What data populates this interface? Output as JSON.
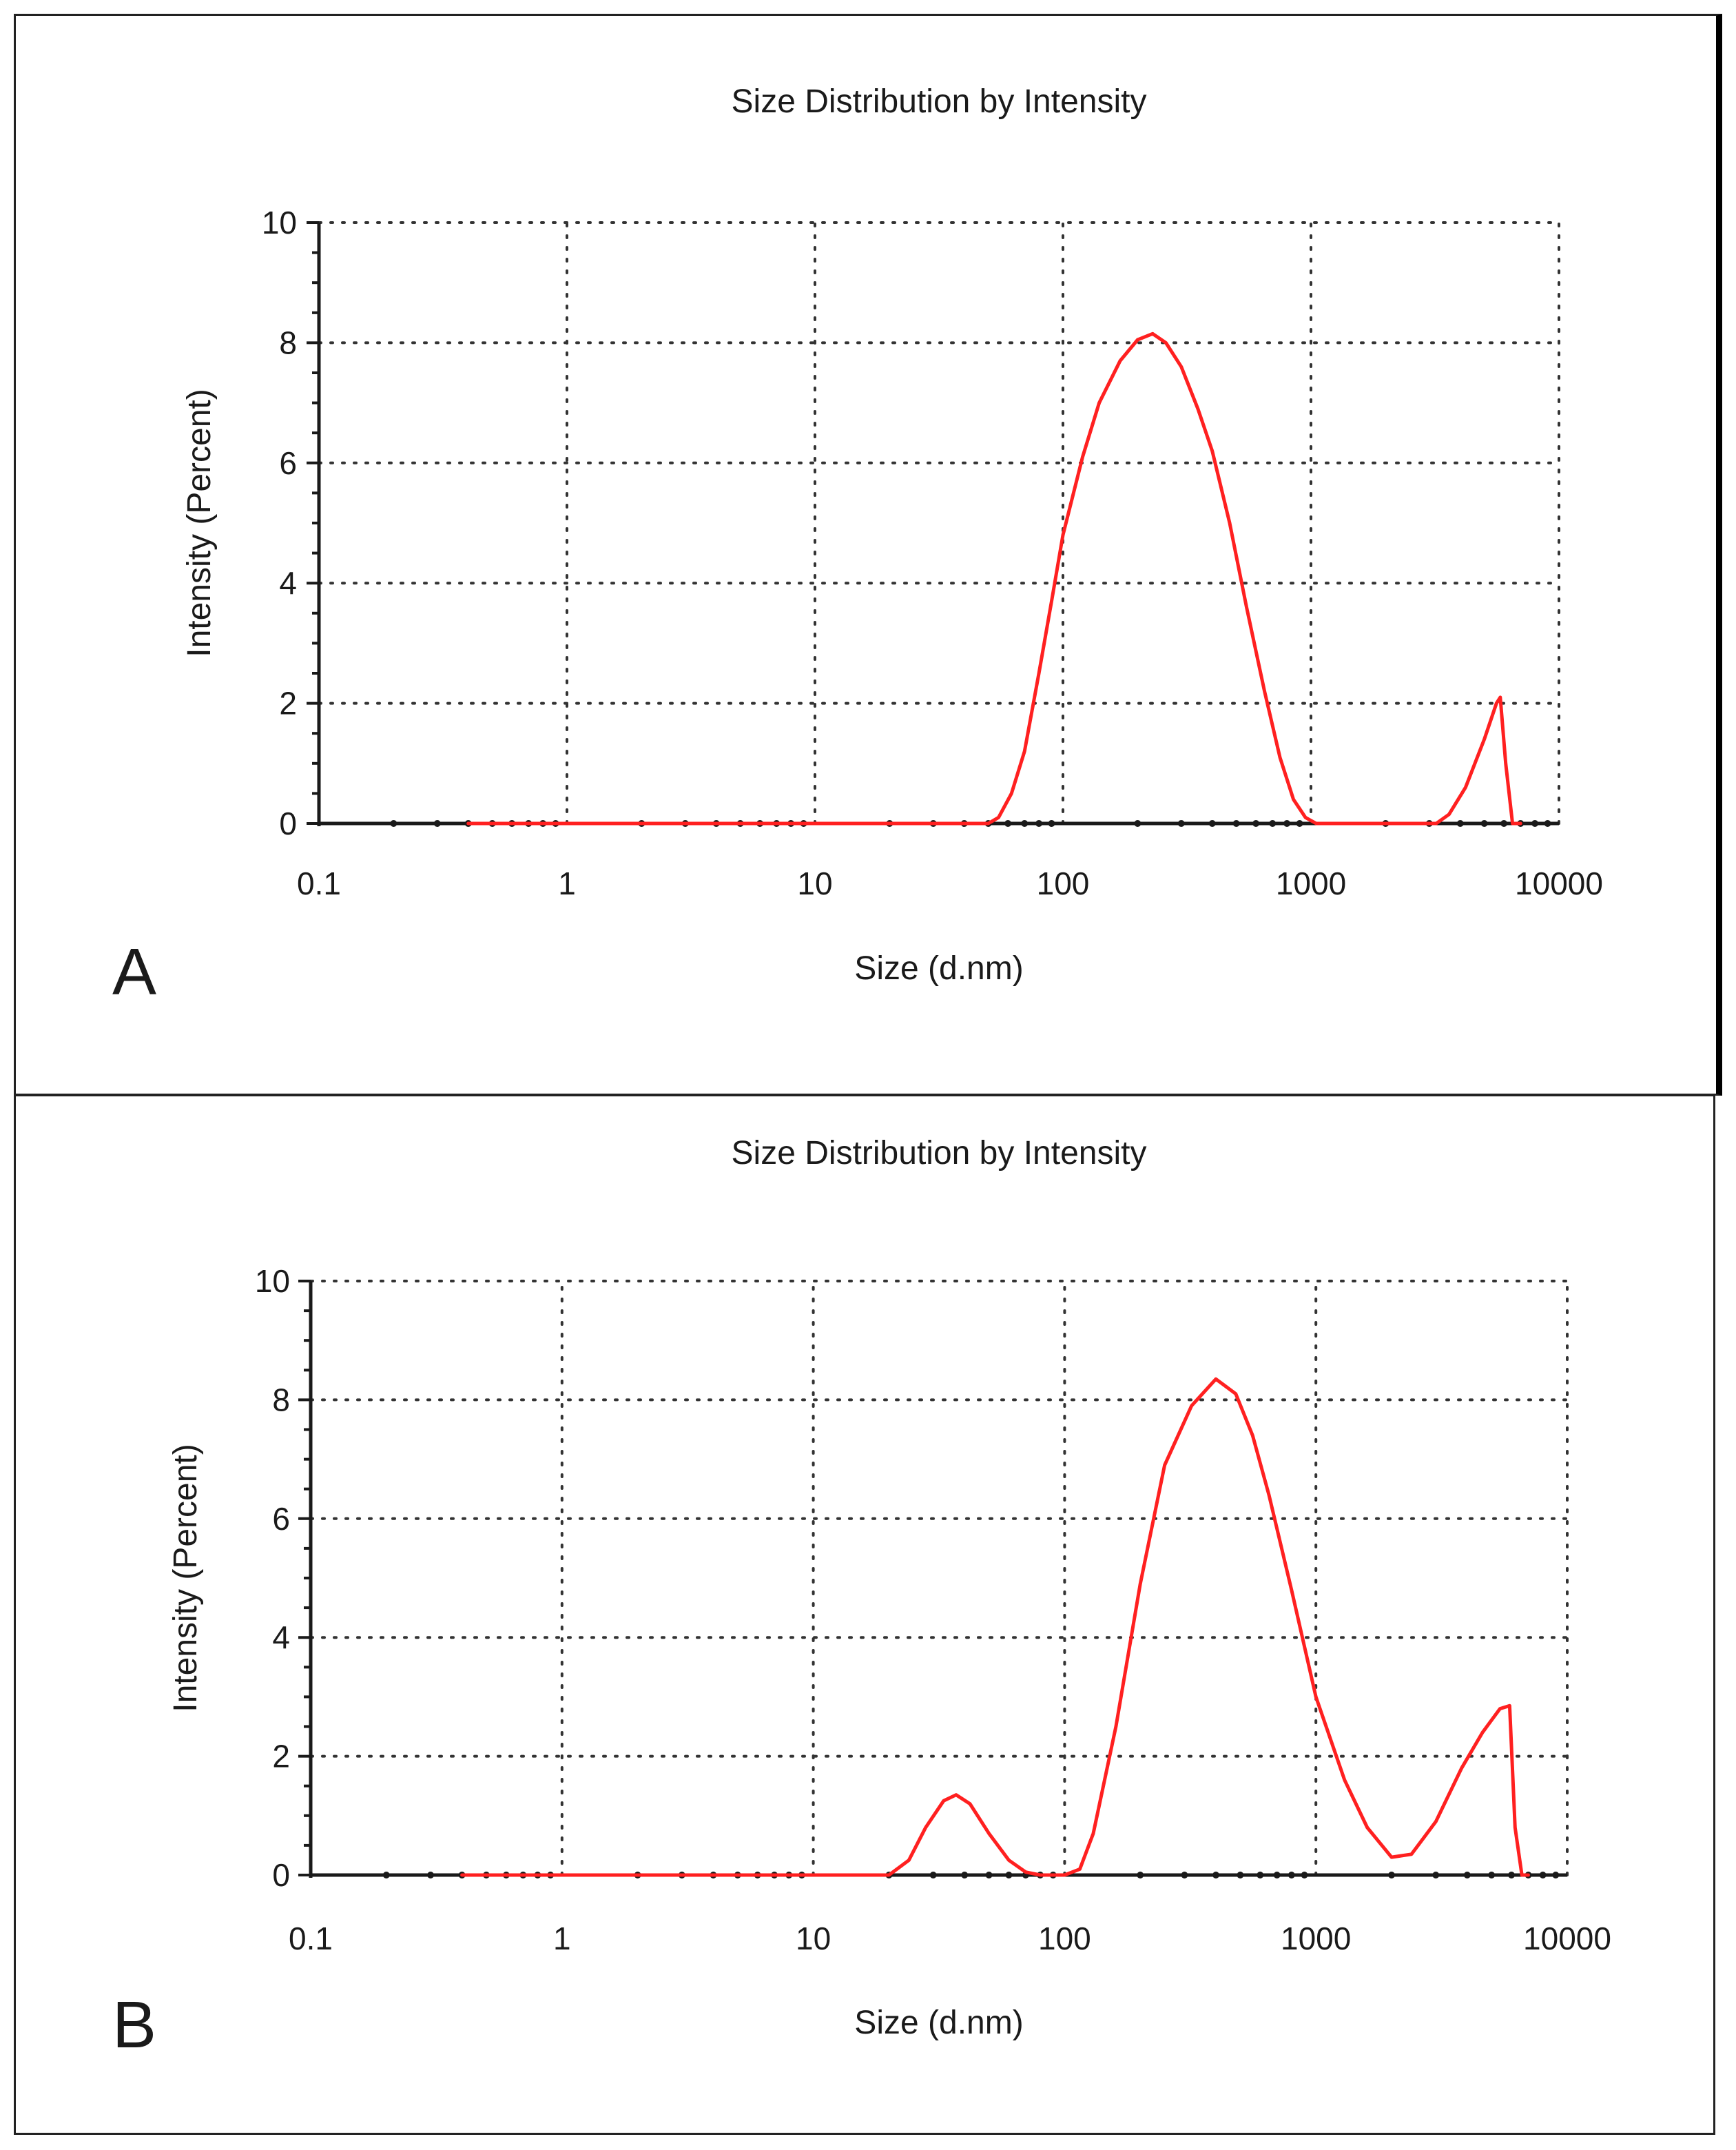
{
  "colors": {
    "curve": "#ff2020",
    "axis": "#1a1a1a",
    "grid": "#333333",
    "background": "#ffffff"
  },
  "chart_data": [
    {
      "panel": "A",
      "type": "line",
      "title": "Size Distribution by Intensity",
      "xlabel": "Size (d.nm)",
      "ylabel": "Intensity (Percent)",
      "xscale": "log",
      "xlim": [
        0.1,
        10000
      ],
      "ylim": [
        0,
        10
      ],
      "x_ticks": [
        "0.1",
        "1",
        "10",
        "100",
        "1000",
        "10000"
      ],
      "y_ticks": [
        "0",
        "2",
        "4",
        "6",
        "8",
        "10"
      ],
      "grid": true,
      "series": [
        {
          "name": "Intensity",
          "x": [
            0.4,
            50,
            55,
            62,
            70,
            80,
            90,
            100,
            120,
            140,
            170,
            200,
            230,
            260,
            300,
            350,
            400,
            470,
            550,
            650,
            750,
            850,
            950,
            1050,
            1500,
            2500,
            3200,
            3600,
            4200,
            5000,
            5600,
            5800,
            6100,
            6500,
            7000
          ],
          "values": [
            0,
            0,
            0.1,
            0.5,
            1.2,
            2.5,
            3.7,
            4.8,
            6.1,
            7.0,
            7.7,
            8.05,
            8.15,
            8.0,
            7.6,
            6.9,
            6.2,
            5.0,
            3.6,
            2.2,
            1.1,
            0.4,
            0.1,
            0,
            0,
            0,
            0,
            0.15,
            0.6,
            1.4,
            2.0,
            2.1,
            1.0,
            0,
            0
          ]
        }
      ]
    },
    {
      "panel": "B",
      "type": "line",
      "title": "Size Distribution by Intensity",
      "xlabel": "Size (d.nm)",
      "ylabel": "Intensity (Percent)",
      "xscale": "log",
      "xlim": [
        0.1,
        10000
      ],
      "ylim": [
        0,
        10
      ],
      "x_ticks": [
        "0.1",
        "1",
        "10",
        "100",
        "1000",
        "10000"
      ],
      "y_ticks": [
        "0",
        "2",
        "4",
        "6",
        "8",
        "10"
      ],
      "grid": true,
      "series": [
        {
          "name": "Intensity",
          "x": [
            0.4,
            20,
            24,
            28,
            33,
            37,
            42,
            50,
            60,
            70,
            80,
            100,
            115,
            130,
            160,
            200,
            250,
            320,
            400,
            480,
            560,
            650,
            800,
            1000,
            1300,
            1600,
            2000,
            2400,
            3000,
            3800,
            4600,
            5400,
            5900,
            6200,
            6600,
            7000
          ],
          "values": [
            0,
            0,
            0.25,
            0.8,
            1.25,
            1.35,
            1.2,
            0.7,
            0.25,
            0.05,
            0,
            0,
            0.1,
            0.7,
            2.5,
            4.9,
            6.9,
            7.9,
            8.35,
            8.1,
            7.4,
            6.4,
            4.8,
            3.0,
            1.6,
            0.8,
            0.3,
            0.35,
            0.9,
            1.8,
            2.4,
            2.8,
            2.85,
            0.8,
            0,
            0
          ]
        }
      ]
    }
  ],
  "panel_labels": [
    "A",
    "B"
  ]
}
